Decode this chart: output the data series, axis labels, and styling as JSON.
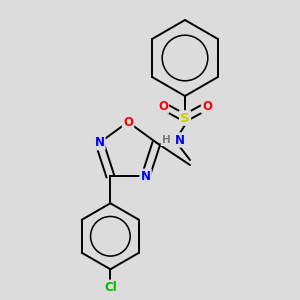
{
  "background_color": "#dcdcdc",
  "bond_color": "#000000",
  "atom_colors": {
    "O": "#ff0000",
    "N": "#0000ff",
    "S": "#cccc00",
    "Cl": "#00bb00",
    "H": "#7a7a7a",
    "C": "#000000"
  },
  "figsize": [
    3.0,
    3.0
  ],
  "dpi": 100,
  "lw": 1.4,
  "fs": 8.5
}
